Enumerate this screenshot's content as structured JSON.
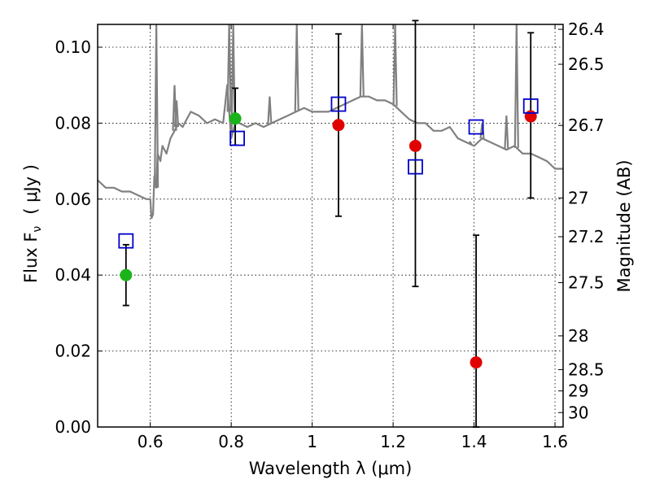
{
  "chart_data": {
    "type": "scatter",
    "xlabel": "Wavelength  λ (μm)",
    "ylabel": "Flux  F",
    "ylabel_sub": "ν",
    "ylabel_units": "( μJy )",
    "y2label": "Magnitude (AB)",
    "xlim": [
      0.47,
      1.62
    ],
    "ylim": [
      0.0,
      0.106
    ],
    "grid": true,
    "x_ticks": [
      0.6,
      0.8,
      1.0,
      1.2,
      1.4,
      1.6
    ],
    "x_tick_labels": [
      "0.6",
      "0.8",
      "1",
      "1.2",
      "1.4",
      "1.6"
    ],
    "y_ticks": [
      0.0,
      0.02,
      0.04,
      0.06,
      0.08,
      0.1
    ],
    "y_tick_labels": [
      "0.00",
      "0.02",
      "0.04",
      "0.06",
      "0.08",
      "0.10"
    ],
    "y2_ticks": [
      {
        "label": "26.4",
        "flux": 0.1047
      },
      {
        "label": "26.5",
        "flux": 0.0955
      },
      {
        "label": "26.7",
        "flux": 0.0794
      },
      {
        "label": "27",
        "flux": 0.0603
      },
      {
        "label": "27.2",
        "flux": 0.0501
      },
      {
        "label": "27.5",
        "flux": 0.038
      },
      {
        "label": "28",
        "flux": 0.024
      },
      {
        "label": "28.5",
        "flux": 0.0151
      },
      {
        "label": "29",
        "flux": 0.0095
      },
      {
        "label": "30",
        "flux": 0.0038
      }
    ],
    "series": [
      {
        "kind": "line",
        "color": "#808080",
        "x": [
          0.47,
          0.49,
          0.51,
          0.53,
          0.55,
          0.57,
          0.59,
          0.6,
          0.603,
          0.607,
          0.61,
          0.615,
          0.618,
          0.625,
          0.63,
          0.64,
          0.65,
          0.66,
          0.67,
          0.68,
          0.69,
          0.7,
          0.72,
          0.74,
          0.76,
          0.78,
          0.79,
          0.8,
          0.81,
          0.82,
          0.84,
          0.86,
          0.88,
          0.9,
          0.92,
          0.94,
          0.96,
          0.98,
          1.0,
          1.02,
          1.04,
          1.06,
          1.08,
          1.1,
          1.12,
          1.14,
          1.16,
          1.18,
          1.2,
          1.22,
          1.24,
          1.26,
          1.28,
          1.3,
          1.32,
          1.34,
          1.36,
          1.38,
          1.4,
          1.42,
          1.44,
          1.46,
          1.48,
          1.5,
          1.52,
          1.54,
          1.56,
          1.58,
          1.6,
          1.62
        ],
        "y": [
          0.065,
          0.063,
          0.063,
          0.062,
          0.062,
          0.061,
          0.06,
          0.06,
          0.055,
          0.056,
          0.066,
          0.063,
          0.072,
          0.07,
          0.074,
          0.072,
          0.076,
          0.078,
          0.08,
          0.079,
          0.081,
          0.083,
          0.082,
          0.08,
          0.081,
          0.08,
          0.09,
          0.076,
          0.08,
          0.08,
          0.079,
          0.08,
          0.079,
          0.08,
          0.081,
          0.082,
          0.083,
          0.084,
          0.083,
          0.083,
          0.083,
          0.084,
          0.085,
          0.086,
          0.087,
          0.087,
          0.086,
          0.086,
          0.085,
          0.083,
          0.081,
          0.08,
          0.08,
          0.078,
          0.078,
          0.079,
          0.076,
          0.075,
          0.074,
          0.076,
          0.075,
          0.074,
          0.073,
          0.074,
          0.072,
          0.072,
          0.071,
          0.07,
          0.068,
          0.068
        ]
      },
      {
        "kind": "points",
        "name": "",
        "color": "#1ab31a",
        "x": [
          0.54,
          0.81
        ],
        "y": [
          0.04,
          0.0812
        ],
        "yerr_low": [
          0.008,
          0.007
        ],
        "yerr_high": [
          0.008,
          0.008
        ]
      },
      {
        "kind": "points",
        "name": "",
        "color": "#e00000",
        "x": [
          1.065,
          1.255,
          1.405,
          1.54
        ],
        "y": [
          0.0795,
          0.074,
          0.017,
          0.0818
        ],
        "yerr_low": [
          0.024,
          0.037,
          0.017,
          0.0215
        ],
        "yerr_high": [
          0.024,
          0.033,
          0.0335,
          0.022
        ]
      },
      {
        "kind": "squares",
        "name": "",
        "color": "#0000cc",
        "x": [
          0.54,
          0.815,
          1.065,
          1.255,
          1.405,
          1.54
        ],
        "y": [
          0.049,
          0.076,
          0.085,
          0.0685,
          0.079,
          0.0845
        ]
      }
    ]
  }
}
